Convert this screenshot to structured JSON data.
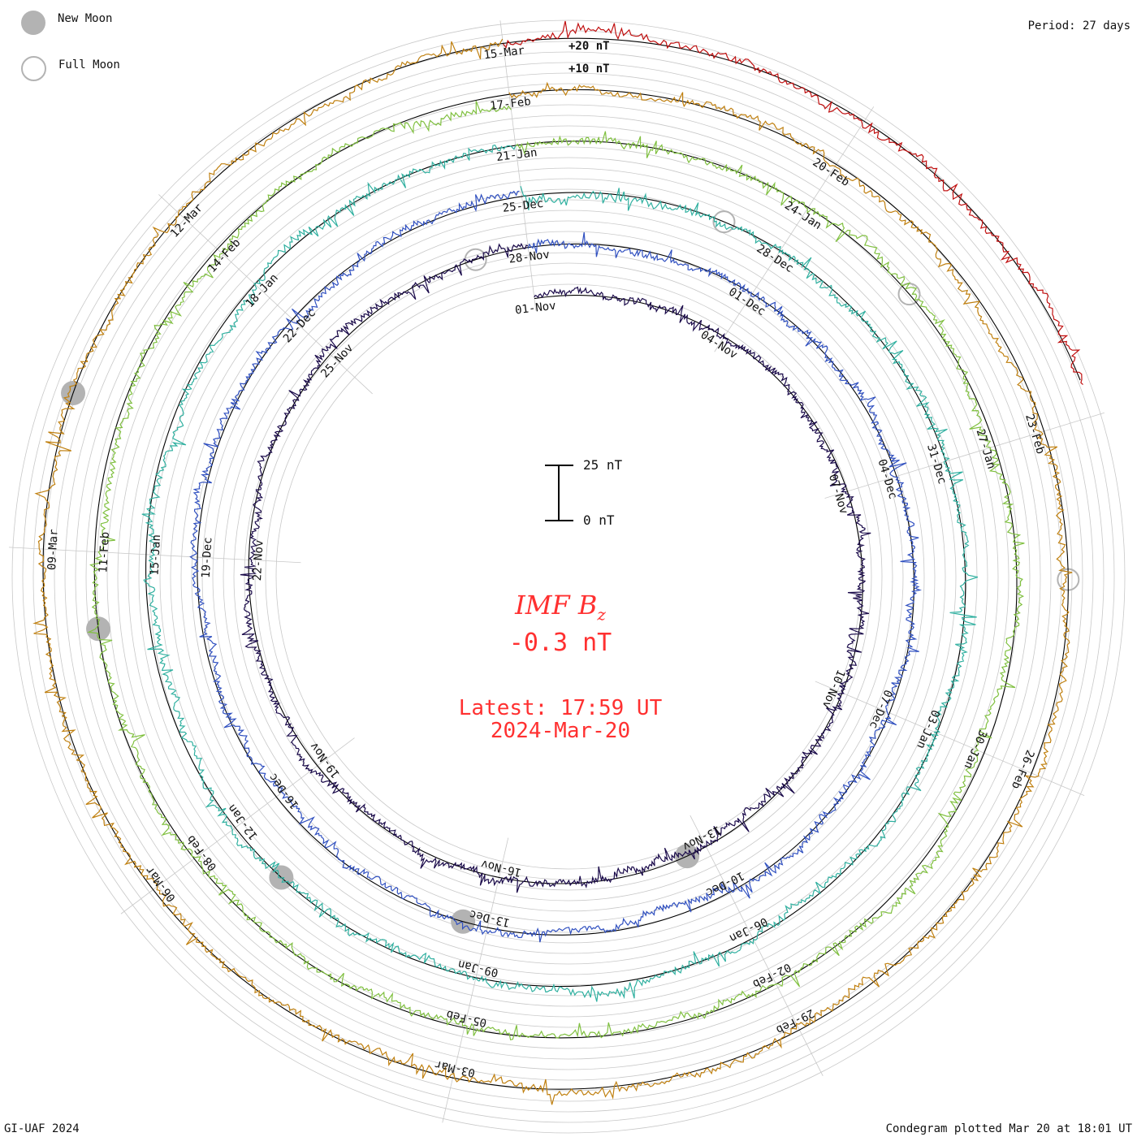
{
  "legend": {
    "new_moon_label": "New Moon",
    "full_moon_label": "Full Moon"
  },
  "period_label": "Period: 27 days",
  "footer": {
    "left": "GI-UAF 2024",
    "right": "Condegram plotted Mar 20 at 18:01 UT"
  },
  "center": {
    "quantity": "IMF B",
    "quantity_subscript": "z",
    "current_value": "-0.3 nT",
    "latest_time": "Latest: 17:59 UT",
    "latest_date": "2024-Mar-20"
  },
  "scale_bar": {
    "top_label": "25 nT",
    "bottom_label": "0 nT"
  },
  "ring_scale_labels": [
    "+20 nT",
    "+10 nT"
  ],
  "colors": {
    "accent": "#ff3030",
    "grid": "#c8c8c8",
    "moon": "#b3b3b3",
    "series": [
      "#1a0a4a",
      "#2a2a9a",
      "#3050c0",
      "#3090c0",
      "#30b0a0",
      "#40c070",
      "#80c040",
      "#b0b020",
      "#c08010",
      "#c05010",
      "#c01010"
    ]
  },
  "chart_data": {
    "type": "condegram (spiral time series)",
    "title": "IMF Bz",
    "period_days": 27,
    "units": "nT",
    "start_date": "2023-11-01",
    "end_date": "2024-03-20",
    "latest": "17:59 UT 2024-Mar-20",
    "latest_value": -0.3,
    "date_labels": [
      [
        "01-Nov",
        "04-Nov",
        "07-Nov",
        "10-Nov",
        "13-Nov",
        "16-Nov",
        "19-Nov",
        "22-Nov",
        "25-Nov",
        "28-Nov"
      ],
      [
        "01-Dec",
        "04-Dec",
        "07-Dec",
        "10-Dec",
        "13-Dec",
        "16-Dec",
        "19-Dec",
        "22-Dec",
        "25-Dec",
        "28-Dec"
      ],
      [
        "31-Dec",
        "03-Jan",
        "06-Jan",
        "09-Jan",
        "12-Jan",
        "15-Jan",
        "18-Jan",
        "21-Jan",
        "24-Jan"
      ],
      [
        "27-Jan",
        "30-Jan",
        "02-Feb",
        "05-Feb",
        "08-Feb",
        "11-Feb",
        "14-Feb",
        "17-Feb",
        "20-Feb"
      ],
      [
        "23-Feb",
        "26-Feb",
        "29-Feb",
        "03-Mar",
        "06-Mar",
        "09-Mar",
        "12-Mar",
        "15-Mar"
      ]
    ],
    "new_moons": [
      "13-Nov",
      "13-Dec",
      "11-Jan",
      "10-Feb",
      "10-Mar"
    ],
    "full_moons": [
      "27-Nov",
      "27-Dec",
      "25-Jan",
      "24-Feb"
    ]
  }
}
